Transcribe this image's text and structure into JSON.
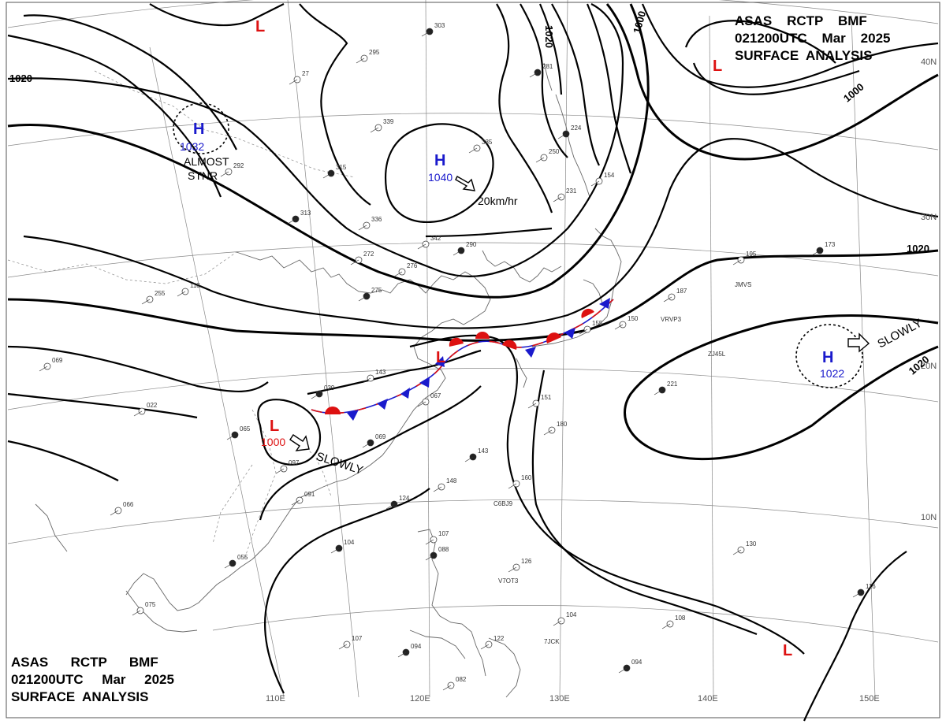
{
  "header_top": {
    "line1": "ASAS    RCTP    BMF",
    "line2": "021200UTC    Mar    2025",
    "line3": "SURFACE  ANALYSIS"
  },
  "header_bottom": {
    "line1": "ASAS      RCTP      BMF",
    "line2": "021200UTC     Mar     2025",
    "line3": "SURFACE  ANALYSIS"
  },
  "pressure_systems": [
    {
      "type": "H",
      "value": "1032",
      "note": "ALMOST STNR",
      "color": "#1a1acc"
    },
    {
      "type": "H",
      "value": "1040",
      "motion": "20km/hr",
      "color": "#1a1acc"
    },
    {
      "type": "H",
      "value": "1022",
      "motion": "SLOWLY",
      "color": "#1a1acc"
    },
    {
      "type": "L",
      "value": "1000",
      "motion": "SLOWLY",
      "color": "#dd1111"
    },
    {
      "type": "L",
      "value": "",
      "color": "#dd1111"
    },
    {
      "type": "L",
      "value": "",
      "color": "#dd1111"
    },
    {
      "type": "L",
      "value": "",
      "color": "#dd1111"
    },
    {
      "type": "L",
      "value": "",
      "color": "#dd1111"
    }
  ],
  "notes": {
    "almost": "ALMOST",
    "stnr": "STNR"
  },
  "isobar_labels": [
    "1020",
    "1020",
    "1000",
    "1000",
    "1020",
    "1020"
  ],
  "latitude_labels": [
    "40N",
    "30N",
    "20N",
    "10N"
  ],
  "longitude_labels": [
    "110E",
    "120E",
    "130E",
    "140E",
    "150E"
  ],
  "ship_ids": [
    "JMVS",
    "VRVP3",
    "ZJ45L",
    "C6BJ9",
    "V7OT3",
    "7JCK"
  ],
  "station_numbers": [
    "303",
    "295",
    "27",
    "281",
    "339",
    "292",
    "315",
    "335",
    "250",
    "313",
    "336",
    "342",
    "290",
    "272",
    "276",
    "275",
    "255",
    "195",
    "173",
    "187",
    "150",
    "221",
    "069",
    "022",
    "065",
    "143",
    "067",
    "069",
    "151",
    "180",
    "143",
    "148",
    "160",
    "124",
    "091",
    "066",
    "104",
    "107",
    "126",
    "055",
    "075",
    "130",
    "116",
    "108",
    "104",
    "094",
    "107",
    "122",
    "094",
    "082",
    "231",
    "224",
    "154",
    "155",
    "039",
    "097",
    "118",
    "088"
  ],
  "colors": {
    "front_warm": "#dd1111",
    "front_cold": "#1a1acc",
    "high": "#1a1acc",
    "low": "#dd1111"
  }
}
